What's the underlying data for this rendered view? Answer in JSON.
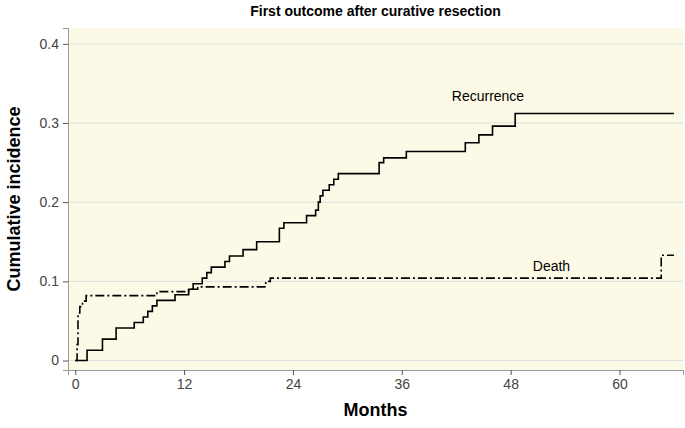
{
  "chart_data": {
    "type": "line",
    "title": "First outcome after curative resection",
    "x_label": "Months",
    "y_label": "Cumulative incidence",
    "xlim": [
      -0.8,
      67
    ],
    "ylim": [
      -0.012,
      0.42
    ],
    "xticks": [
      0,
      12,
      24,
      36,
      48,
      60
    ],
    "yticks": [
      0,
      0.1,
      0.2,
      0.3,
      0.4
    ],
    "grid": true,
    "series": [
      {
        "name": "Recurrence",
        "color": "#000000",
        "line_style": "solid",
        "x": [
          0,
          1.3,
          3,
          4.5,
          6.5,
          7.5,
          8,
          8.5,
          9,
          11,
          12.5,
          13,
          14,
          14.5,
          15,
          16.5,
          17,
          18.5,
          20,
          22.5,
          23,
          25.5,
          26.5,
          26.8,
          27,
          27.3,
          28,
          28.5,
          29,
          33.5,
          34,
          36.5,
          43,
          44.5,
          46,
          48.5,
          66
        ],
        "values": [
          0,
          0.013,
          0.027,
          0.041,
          0.048,
          0.055,
          0.062,
          0.069,
          0.076,
          0.083,
          0.09,
          0.097,
          0.104,
          0.111,
          0.118,
          0.125,
          0.132,
          0.14,
          0.15,
          0.167,
          0.174,
          0.183,
          0.19,
          0.2,
          0.208,
          0.215,
          0.222,
          0.229,
          0.236,
          0.25,
          0.256,
          0.264,
          0.275,
          0.285,
          0.296,
          0.312,
          0.312
        ]
      },
      {
        "name": "Death",
        "color": "#000000",
        "line_style": "dashdot",
        "x": [
          0,
          0.2,
          0.3,
          0.5,
          0.8,
          1.2,
          9,
          12.5,
          13.5,
          21,
          21.5,
          64.6,
          66
        ],
        "values": [
          0,
          0.02,
          0.06,
          0.068,
          0.075,
          0.082,
          0.087,
          0.09,
          0.093,
          0.1,
          0.104,
          0.133,
          0.133
        ]
      }
    ],
    "annotations": [
      {
        "text": "Recurrence",
        "x": 45.5,
        "y": 0.328
      },
      {
        "text": "Death",
        "x": 52.5,
        "y": 0.113
      }
    ]
  }
}
